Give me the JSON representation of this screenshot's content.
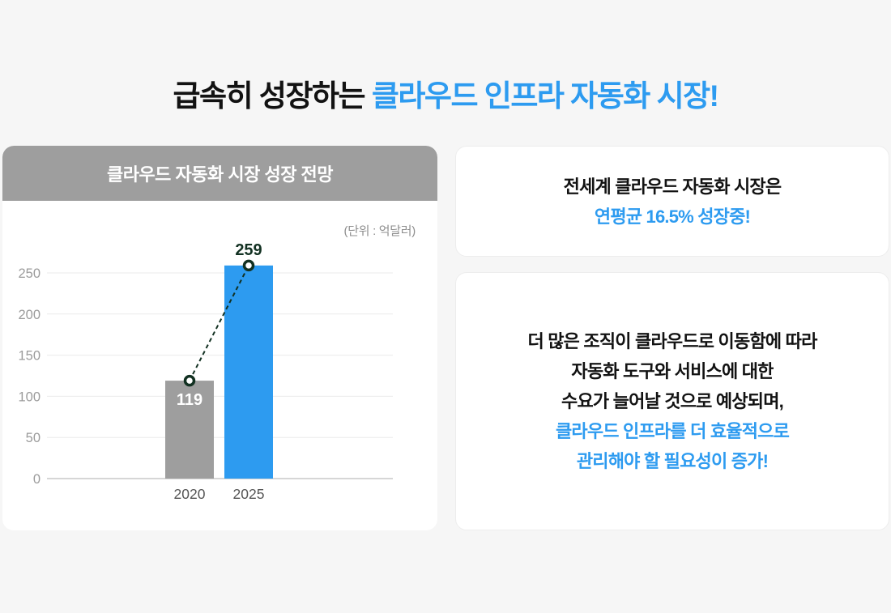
{
  "page": {
    "background_color": "#f6f6f6",
    "accent_blue": "#2d9bf0",
    "header_gray": "#9e9e9e",
    "dark_accent": "#123122"
  },
  "title": {
    "black": "급속히 성장하는 ",
    "blue": "클라우드 인프라 자동화 시장!"
  },
  "chart_card": {
    "header": "클라우드 자동화 시장 성장 전망",
    "unit": "(단위 : 억달러)"
  },
  "chart_data": {
    "type": "bar",
    "title": "클라우드 자동화 시장 성장 전망",
    "unit": "(단위 : 억달러)",
    "categories": [
      "2020",
      "2025"
    ],
    "values": [
      119,
      259
    ],
    "bar_colors": [
      "#9e9e9e",
      "#2d9bf0"
    ],
    "value_label_colors": [
      "#ffffff",
      "#123122"
    ],
    "value_label_placement": [
      "inside-top",
      "above"
    ],
    "xlabel": "",
    "ylabel": "",
    "yticks": [
      0,
      50,
      100,
      150,
      200,
      250
    ],
    "ylim": [
      0,
      285
    ],
    "grid": true,
    "gridline_color": "#ebebeb",
    "baseline_color": "#c9c9c9",
    "tick_label_color": "#9b9b9b",
    "category_label_color": "#555555",
    "connector": {
      "style": "dashed",
      "color": "#123122",
      "markers": "open-circle"
    }
  },
  "stat_card": {
    "line1": "전세계 클라우드 자동화 시장은",
    "line2": "연평균 16.5% 성장중!"
  },
  "desc_card": {
    "lines": [
      "더 많은 조직이 클라우드로 이동함에 따라",
      "자동화 도구와 서비스에 대한",
      "수요가 늘어날 것으로 예상되며,",
      "클라우드 인프라를 더 효율적으로",
      "관리해야 할 필요성이 증가!"
    ]
  }
}
